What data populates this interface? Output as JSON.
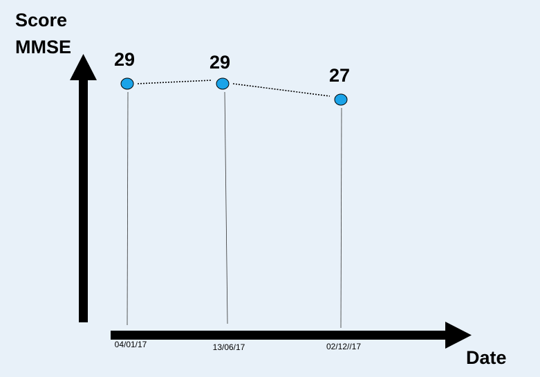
{
  "chart_data": {
    "type": "line",
    "ylabel_lines": [
      "Score",
      "MMSE"
    ],
    "xlabel": "Date",
    "categories": [
      "04/01/17",
      "13/06/17",
      "02/12//17"
    ],
    "x": [
      "2017-01-04",
      "2017-06-13",
      "2017-12-02"
    ],
    "values": [
      29,
      29,
      27
    ],
    "data_labels": [
      "29",
      "29",
      "27"
    ],
    "grid": false,
    "marker_color": "#1aa3e8",
    "line_color": "#000000",
    "background_color": "#e8f1f9"
  }
}
